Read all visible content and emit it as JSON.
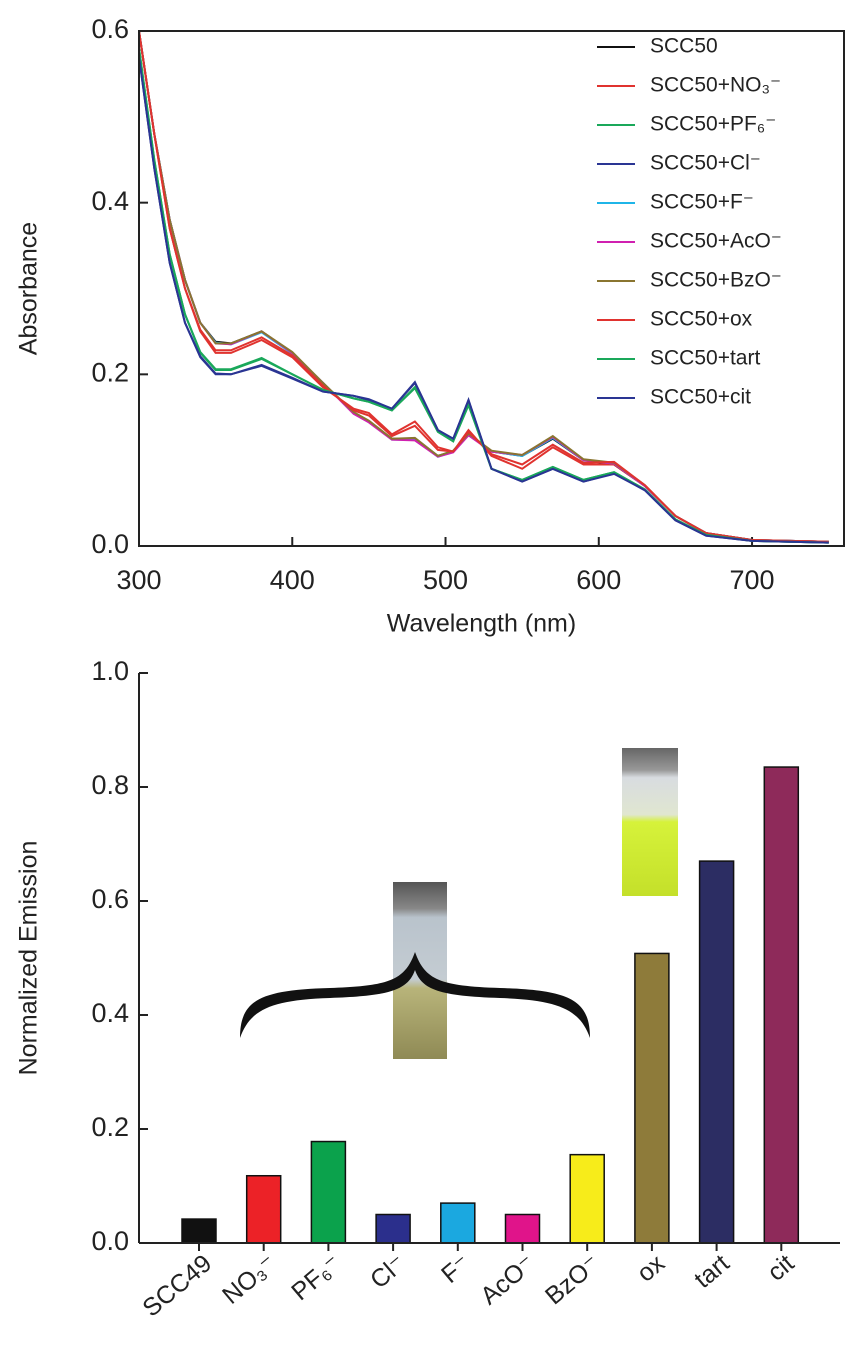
{
  "chart_data": [
    {
      "type": "line",
      "x_label": "Wavelength (nm)",
      "y_label": "Absorbance",
      "xlim": [
        300,
        760
      ],
      "xticks": [
        300,
        400,
        500,
        600,
        700
      ],
      "ylim": [
        0,
        0.6
      ],
      "yticks": [
        {
          "value": 0,
          "label": "0.0"
        },
        0.2,
        0.4,
        0.6
      ],
      "legend": "upper-right",
      "x": [
        300,
        310,
        320,
        330,
        340,
        350,
        360,
        380,
        400,
        420,
        440,
        450,
        465,
        480,
        495,
        505,
        515,
        530,
        550,
        570,
        590,
        610,
        630,
        650,
        670,
        700,
        750
      ],
      "series": [
        {
          "name": "SCC50",
          "color": "#111111",
          "values": [
            0.6,
            0.48,
            0.38,
            0.31,
            0.26,
            0.238,
            0.236,
            0.25,
            0.225,
            0.19,
            0.155,
            0.145,
            0.125,
            0.125,
            0.105,
            0.11,
            0.13,
            0.11,
            0.105,
            0.125,
            0.1,
            0.095,
            0.07,
            0.035,
            0.015,
            0.007,
            0.005
          ]
        },
        {
          "name": "SCC50+NO₃⁻",
          "color": "#e0332f",
          "values": [
            0.6,
            0.48,
            0.37,
            0.3,
            0.25,
            0.225,
            0.225,
            0.24,
            0.22,
            0.185,
            0.16,
            0.155,
            0.13,
            0.145,
            0.115,
            0.11,
            0.135,
            0.105,
            0.09,
            0.115,
            0.095,
            0.095,
            0.07,
            0.035,
            0.015,
            0.007,
            0.005
          ]
        },
        {
          "name": "SCC50+PF₆⁻",
          "color": "#1aa85a",
          "values": [
            0.58,
            0.45,
            0.34,
            0.27,
            0.225,
            0.205,
            0.205,
            0.218,
            0.2,
            0.182,
            0.172,
            0.168,
            0.158,
            0.185,
            0.133,
            0.122,
            0.165,
            0.09,
            0.077,
            0.092,
            0.077,
            0.086,
            0.066,
            0.031,
            0.013,
            0.006,
            0.004
          ]
        },
        {
          "name": "SCC50+Cl⁻",
          "color": "#2a3593",
          "values": [
            0.57,
            0.44,
            0.33,
            0.26,
            0.22,
            0.2,
            0.2,
            0.21,
            0.195,
            0.18,
            0.175,
            0.17,
            0.16,
            0.19,
            0.135,
            0.125,
            0.17,
            0.09,
            0.075,
            0.09,
            0.075,
            0.085,
            0.065,
            0.03,
            0.012,
            0.006,
            0.004
          ]
        },
        {
          "name": "SCC50+F⁻",
          "color": "#1fb5e8",
          "values": [
            0.6,
            0.48,
            0.38,
            0.31,
            0.26,
            0.237,
            0.235,
            0.249,
            0.224,
            0.19,
            0.155,
            0.145,
            0.124,
            0.124,
            0.104,
            0.11,
            0.13,
            0.11,
            0.105,
            0.126,
            0.1,
            0.096,
            0.07,
            0.035,
            0.015,
            0.007,
            0.005
          ]
        },
        {
          "name": "SCC50+AcO⁻",
          "color": "#d020b0",
          "values": [
            0.6,
            0.48,
            0.38,
            0.31,
            0.26,
            0.236,
            0.235,
            0.25,
            0.225,
            0.19,
            0.154,
            0.144,
            0.124,
            0.123,
            0.104,
            0.109,
            0.129,
            0.11,
            0.106,
            0.127,
            0.1,
            0.096,
            0.07,
            0.035,
            0.015,
            0.007,
            0.005
          ]
        },
        {
          "name": "SCC50+BzO⁻",
          "color": "#8a7530",
          "values": [
            0.6,
            0.48,
            0.38,
            0.31,
            0.26,
            0.236,
            0.236,
            0.25,
            0.226,
            0.19,
            0.156,
            0.146,
            0.125,
            0.126,
            0.105,
            0.111,
            0.131,
            0.111,
            0.106,
            0.128,
            0.101,
            0.097,
            0.071,
            0.035,
            0.015,
            0.007,
            0.005
          ]
        },
        {
          "name": "SCC50+ox",
          "color": "#e0332f",
          "values": [
            0.6,
            0.48,
            0.37,
            0.3,
            0.252,
            0.228,
            0.228,
            0.243,
            0.222,
            0.187,
            0.158,
            0.152,
            0.128,
            0.14,
            0.112,
            0.11,
            0.133,
            0.107,
            0.095,
            0.118,
            0.097,
            0.098,
            0.071,
            0.035,
            0.015,
            0.007,
            0.005
          ]
        },
        {
          "name": "SCC50+tart",
          "color": "#1aa85a",
          "values": [
            0.58,
            0.45,
            0.34,
            0.27,
            0.226,
            0.206,
            0.206,
            0.219,
            0.2,
            0.182,
            0.172,
            0.168,
            0.158,
            0.184,
            0.133,
            0.122,
            0.164,
            0.09,
            0.077,
            0.092,
            0.077,
            0.086,
            0.066,
            0.031,
            0.013,
            0.006,
            0.004
          ]
        },
        {
          "name": "SCC50+cit",
          "color": "#2a3593",
          "values": [
            0.57,
            0.44,
            0.33,
            0.26,
            0.221,
            0.201,
            0.2,
            0.211,
            0.196,
            0.18,
            0.175,
            0.171,
            0.16,
            0.191,
            0.135,
            0.125,
            0.17,
            0.09,
            0.075,
            0.09,
            0.075,
            0.084,
            0.065,
            0.03,
            0.012,
            0.006,
            0.004
          ]
        }
      ]
    },
    {
      "type": "bar",
      "y_label": "Normalized Emission",
      "ylim": [
        0,
        1
      ],
      "yticks": [
        {
          "value": 0,
          "label": "0.0"
        },
        0.2,
        0.4,
        0.6,
        0.8,
        {
          "value": 1,
          "label": "1.0"
        }
      ],
      "categories": [
        "SCC49",
        "NO₃⁻",
        "PF₆⁻",
        "Cl⁻",
        "F⁻",
        "AcO⁻",
        "BzO⁻",
        "ox",
        "tart",
        "cit"
      ],
      "values": [
        0.042,
        0.118,
        0.178,
        0.05,
        0.07,
        0.05,
        0.155,
        0.508,
        0.67,
        0.835
      ],
      "colors": [
        "#111111",
        "#ec2227",
        "#0ba24c",
        "#2b2f8c",
        "#1ba8e0",
        "#e0148a",
        "#f7ec1a",
        "#8e7b3a",
        "#2c2d63",
        "#8e2a5a"
      ]
    }
  ]
}
